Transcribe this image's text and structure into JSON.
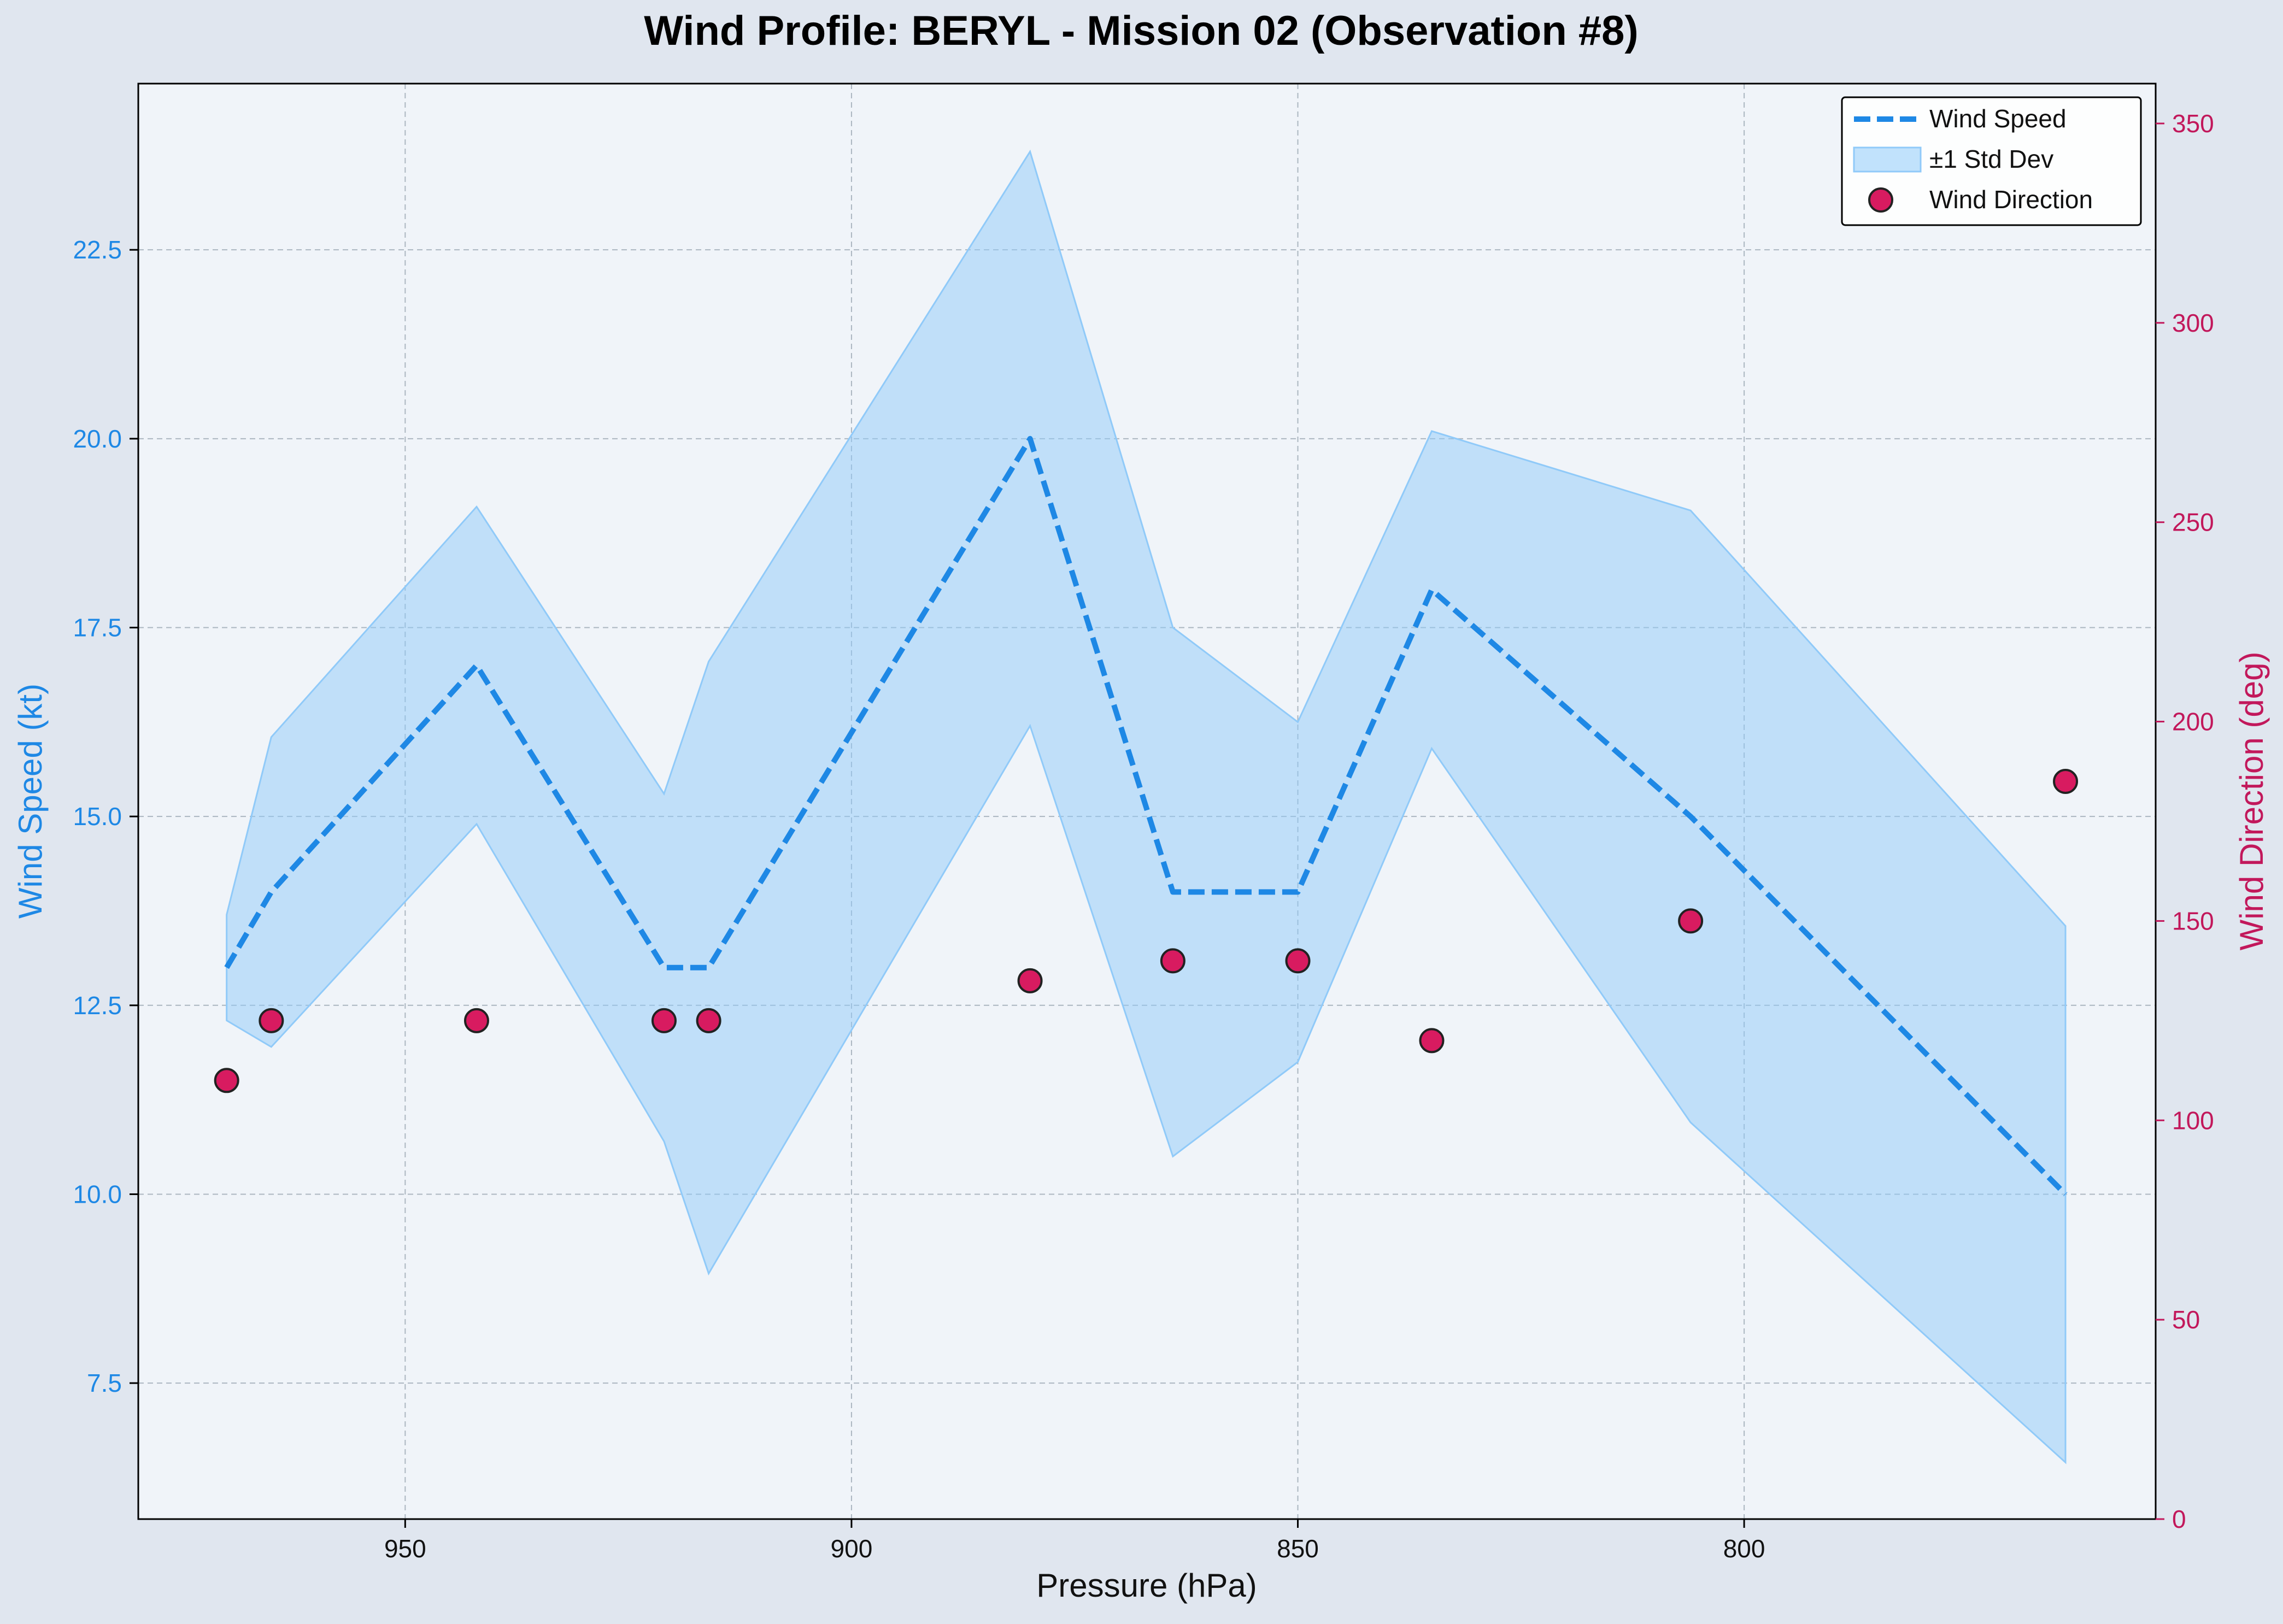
{
  "chart_data": {
    "type": "line",
    "title": "Wind Profile: BERYL - Mission 02 (Observation #8)",
    "xlabel": "Pressure (hPa)",
    "ylabel": "Wind Speed (kt)",
    "y2label": "Wind Direction (deg)",
    "x_inverted": true,
    "xlim": [
      979.9,
      753.9
    ],
    "ylim": [
      5.7,
      24.7
    ],
    "y2lim": [
      0,
      360
    ],
    "xticks": [
      950,
      900,
      850,
      800
    ],
    "yticks": [
      7.5,
      10.0,
      12.5,
      15.0,
      17.5,
      20.0,
      22.5
    ],
    "y2ticks": [
      0,
      50,
      100,
      150,
      200,
      250,
      300,
      350
    ],
    "grid": true,
    "legend_position": "top-right",
    "colors": {
      "speed": "#1e88e5",
      "band": "#90caf9",
      "direction": "#d81b60",
      "direction_axis": "#c2185b",
      "plot_bg": "#f0f4f9",
      "figure_bg": "#e0e6ef",
      "grid": "#9aa6b2"
    },
    "series": [
      {
        "name": "Wind Speed",
        "kind": "line",
        "axis": "left",
        "x": [
          970,
          965,
          942,
          921,
          916,
          880,
          864,
          850,
          835,
          806,
          764
        ],
        "values": [
          13.0,
          14.0,
          17.0,
          13.0,
          13.0,
          20.0,
          14.0,
          14.0,
          18.0,
          15.0,
          10.0
        ]
      },
      {
        "name": "±1 Std Dev",
        "kind": "band",
        "axis": "left",
        "x": [
          970,
          965,
          942,
          921,
          916,
          880,
          864,
          850,
          835,
          806,
          764
        ],
        "lower": [
          12.3,
          11.95,
          14.9,
          10.7,
          8.95,
          16.2,
          10.5,
          11.75,
          15.9,
          10.95,
          6.45
        ],
        "upper": [
          13.7,
          16.05,
          19.1,
          15.3,
          17.05,
          23.8,
          17.5,
          16.25,
          20.1,
          19.05,
          13.55
        ]
      },
      {
        "name": "Wind Direction",
        "kind": "scatter",
        "axis": "right",
        "x": [
          970,
          965,
          942,
          921,
          916,
          880,
          864,
          850,
          835,
          806,
          764
        ],
        "values": [
          110,
          125,
          125,
          125,
          125,
          135,
          140,
          140,
          120,
          150,
          185
        ]
      }
    ]
  }
}
